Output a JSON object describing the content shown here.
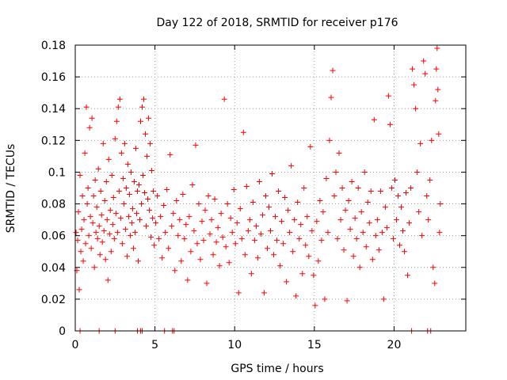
{
  "chart_data": {
    "type": "scatter",
    "title": "Day 122 of 2018, SRMTID for receiver p176",
    "xlabel": "GPS time / hours",
    "ylabel": "SRMTID / TECUs",
    "xlim": [
      0,
      24.5
    ],
    "ylim": [
      0,
      0.18
    ],
    "x_ticks": [
      0,
      5,
      10,
      15,
      20
    ],
    "x_tick_labels": [
      "0",
      "5",
      "10",
      "15",
      "20"
    ],
    "y_ticks": [
      0,
      0.02,
      0.04,
      0.06,
      0.08,
      0.1,
      0.12,
      0.14,
      0.16,
      0.18
    ],
    "y_tick_labels": [
      "0",
      "0.02",
      "0.04",
      "0.06",
      "0.08",
      "0.1",
      "0.12",
      "0.14",
      "0.16",
      "0.18"
    ],
    "grid": true,
    "marker": "+",
    "series_color": "#ff0000",
    "zero_points_x": [
      0.3,
      1.5,
      2.5,
      3.9,
      4.1,
      4.2,
      5.6,
      6.1,
      6.2,
      21.1,
      22.1,
      22.3
    ],
    "series": [
      {
        "name": "SRMTID",
        "points": [
          [
            0.05,
            0.062
          ],
          [
            0.1,
            0.038
          ],
          [
            0.15,
            0.057
          ],
          [
            0.2,
            0.075
          ],
          [
            0.25,
            0.026
          ],
          [
            0.3,
            0.098
          ],
          [
            0.35,
            0.05
          ],
          [
            0.4,
            0.064
          ],
          [
            0.45,
            0.085
          ],
          [
            0.5,
            0.044
          ],
          [
            0.55,
            0.07
          ],
          [
            0.6,
            0.112
          ],
          [
            0.65,
            0.055
          ],
          [
            0.7,
            0.141
          ],
          [
            0.75,
            0.08
          ],
          [
            0.8,
            0.09
          ],
          [
            0.85,
            0.06
          ],
          [
            0.9,
            0.128
          ],
          [
            0.95,
            0.072
          ],
          [
            1.0,
            0.052
          ],
          [
            1.05,
            0.134
          ],
          [
            1.1,
            0.068
          ],
          [
            1.15,
            0.085
          ],
          [
            1.2,
            0.04
          ],
          [
            1.25,
            0.095
          ],
          [
            1.3,
            0.062
          ],
          [
            1.35,
            0.078
          ],
          [
            1.4,
            0.058
          ],
          [
            1.45,
            0.102
          ],
          [
            1.5,
            0.066
          ],
          [
            1.55,
            0.048
          ],
          [
            1.6,
            0.088
          ],
          [
            1.65,
            0.073
          ],
          [
            1.7,
            0.056
          ],
          [
            1.75,
            0.118
          ],
          [
            1.8,
            0.063
          ],
          [
            1.85,
            0.082
          ],
          [
            1.9,
            0.045
          ],
          [
            1.95,
            0.094
          ],
          [
            2.0,
            0.07
          ],
          [
            2.05,
            0.032
          ],
          [
            2.1,
            0.108
          ],
          [
            2.15,
            0.061
          ],
          [
            2.2,
            0.076
          ],
          [
            2.25,
            0.05
          ],
          [
            2.3,
            0.098
          ],
          [
            2.35,
            0.067
          ],
          [
            2.4,
            0.084
          ],
          [
            2.45,
            0.058
          ],
          [
            2.5,
            0.121
          ],
          [
            2.55,
            0.074
          ],
          [
            2.6,
            0.132
          ],
          [
            2.65,
            0.062
          ],
          [
            2.7,
            0.141
          ],
          [
            2.75,
            0.088
          ],
          [
            2.8,
            0.146
          ],
          [
            2.85,
            0.071
          ],
          [
            2.9,
            0.112
          ],
          [
            2.95,
            0.055
          ],
          [
            3.0,
            0.096
          ],
          [
            3.05,
            0.08
          ],
          [
            3.1,
            0.118
          ],
          [
            3.15,
            0.064
          ],
          [
            3.2,
            0.09
          ],
          [
            3.25,
            0.047
          ],
          [
            3.3,
            0.105
          ],
          [
            3.35,
            0.072
          ],
          [
            3.4,
            0.086
          ],
          [
            3.45,
            0.06
          ],
          [
            3.5,
            0.1
          ],
          [
            3.55,
            0.068
          ],
          [
            3.6,
            0.077
          ],
          [
            3.65,
            0.052
          ],
          [
            3.7,
            0.094
          ],
          [
            3.75,
            0.062
          ],
          [
            3.8,
            0.115
          ],
          [
            3.85,
            0.074
          ],
          [
            3.9,
            0.088
          ],
          [
            3.95,
            0.044
          ],
          [
            4.0,
            0.092
          ],
          [
            4.05,
            0.07
          ],
          [
            4.1,
            0.132
          ],
          [
            4.15,
            0.08
          ],
          [
            4.2,
            0.141
          ],
          [
            4.25,
            0.098
          ],
          [
            4.3,
            0.146
          ],
          [
            4.35,
            0.087
          ],
          [
            4.4,
            0.124
          ],
          [
            4.45,
            0.066
          ],
          [
            4.5,
            0.11
          ],
          [
            4.55,
            0.083
          ],
          [
            4.6,
            0.134
          ],
          [
            4.65,
            0.076
          ],
          [
            4.7,
            0.118
          ],
          [
            4.75,
            0.059
          ],
          [
            4.8,
            0.101
          ],
          [
            4.85,
            0.071
          ],
          [
            4.9,
            0.088
          ],
          [
            4.95,
            0.054
          ],
          [
            5.05,
            0.068
          ],
          [
            5.15,
            0.085
          ],
          [
            5.25,
            0.058
          ],
          [
            5.35,
            0.072
          ],
          [
            5.45,
            0.046
          ],
          [
            5.55,
            0.079
          ],
          [
            5.65,
            0.062
          ],
          [
            5.75,
            0.089
          ],
          [
            5.85,
            0.052
          ],
          [
            5.95,
            0.111
          ],
          [
            6.05,
            0.066
          ],
          [
            6.15,
            0.074
          ],
          [
            6.25,
            0.038
          ],
          [
            6.35,
            0.082
          ],
          [
            6.45,
            0.06
          ],
          [
            6.55,
            0.07
          ],
          [
            6.65,
            0.044
          ],
          [
            6.75,
            0.086
          ],
          [
            6.85,
            0.058
          ],
          [
            6.95,
            0.067
          ],
          [
            7.05,
            0.032
          ],
          [
            7.15,
            0.072
          ],
          [
            7.25,
            0.05
          ],
          [
            7.35,
            0.092
          ],
          [
            7.45,
            0.063
          ],
          [
            7.55,
            0.117
          ],
          [
            7.65,
            0.055
          ],
          [
            7.75,
            0.08
          ],
          [
            7.85,
            0.045
          ],
          [
            7.95,
            0.069
          ],
          [
            8.05,
            0.057
          ],
          [
            8.15,
            0.076
          ],
          [
            8.25,
            0.03
          ],
          [
            8.35,
            0.085
          ],
          [
            8.45,
            0.061
          ],
          [
            8.55,
            0.07
          ],
          [
            8.65,
            0.048
          ],
          [
            8.75,
            0.083
          ],
          [
            8.85,
            0.056
          ],
          [
            8.95,
            0.065
          ],
          [
            9.05,
            0.041
          ],
          [
            9.15,
            0.074
          ],
          [
            9.25,
            0.059
          ],
          [
            9.35,
            0.146
          ],
          [
            9.45,
            0.053
          ],
          [
            9.55,
            0.08
          ],
          [
            9.65,
            0.043
          ],
          [
            9.75,
            0.071
          ],
          [
            9.85,
            0.062
          ],
          [
            9.95,
            0.089
          ],
          [
            10.05,
            0.055
          ],
          [
            10.15,
            0.068
          ],
          [
            10.25,
            0.024
          ],
          [
            10.35,
            0.077
          ],
          [
            10.45,
            0.058
          ],
          [
            10.55,
            0.125
          ],
          [
            10.65,
            0.048
          ],
          [
            10.75,
            0.091
          ],
          [
            10.85,
            0.063
          ],
          [
            10.95,
            0.07
          ],
          [
            11.05,
            0.036
          ],
          [
            11.15,
            0.081
          ],
          [
            11.25,
            0.057
          ],
          [
            11.35,
            0.066
          ],
          [
            11.45,
            0.046
          ],
          [
            11.55,
            0.094
          ],
          [
            11.65,
            0.061
          ],
          [
            11.75,
            0.073
          ],
          [
            11.85,
            0.024
          ],
          [
            11.95,
            0.085
          ],
          [
            12.05,
            0.052
          ],
          [
            12.15,
            0.078
          ],
          [
            12.25,
            0.063
          ],
          [
            12.35,
            0.099
          ],
          [
            12.45,
            0.048
          ],
          [
            12.55,
            0.072
          ],
          [
            12.65,
            0.057
          ],
          [
            12.75,
            0.088
          ],
          [
            12.85,
            0.041
          ],
          [
            12.95,
            0.069
          ],
          [
            13.05,
            0.055
          ],
          [
            13.15,
            0.084
          ],
          [
            13.25,
            0.031
          ],
          [
            13.35,
            0.076
          ],
          [
            13.45,
            0.062
          ],
          [
            13.55,
            0.104
          ],
          [
            13.65,
            0.05
          ],
          [
            13.75,
            0.07
          ],
          [
            13.85,
            0.022
          ],
          [
            13.95,
            0.081
          ],
          [
            14.05,
            0.058
          ],
          [
            14.15,
            0.067
          ],
          [
            14.25,
            0.036
          ],
          [
            14.35,
            0.09
          ],
          [
            14.45,
            0.054
          ],
          [
            14.55,
            0.072
          ],
          [
            14.65,
            0.047
          ],
          [
            14.75,
            0.116
          ],
          [
            14.85,
            0.063
          ],
          [
            14.95,
            0.035
          ],
          [
            15.05,
            0.016
          ],
          [
            15.15,
            0.069
          ],
          [
            15.25,
            0.044
          ],
          [
            15.35,
            0.082
          ],
          [
            15.45,
            0.057
          ],
          [
            15.55,
            0.075
          ],
          [
            15.65,
            0.02
          ],
          [
            15.75,
            0.096
          ],
          [
            15.85,
            0.062
          ],
          [
            15.95,
            0.12
          ],
          [
            16.05,
            0.147
          ],
          [
            16.15,
            0.164
          ],
          [
            16.25,
            0.085
          ],
          [
            16.35,
            0.1
          ],
          [
            16.45,
            0.058
          ],
          [
            16.55,
            0.112
          ],
          [
            16.65,
            0.07
          ],
          [
            16.75,
            0.09
          ],
          [
            16.85,
            0.051
          ],
          [
            16.95,
            0.076
          ],
          [
            17.05,
            0.019
          ],
          [
            17.15,
            0.082
          ],
          [
            17.25,
            0.064
          ],
          [
            17.35,
            0.094
          ],
          [
            17.45,
            0.047
          ],
          [
            17.55,
            0.071
          ],
          [
            17.65,
            0.058
          ],
          [
            17.75,
            0.09
          ],
          [
            17.85,
            0.04
          ],
          [
            17.95,
            0.075
          ],
          [
            18.05,
            0.062
          ],
          [
            18.15,
            0.1
          ],
          [
            18.25,
            0.053
          ],
          [
            18.35,
            0.081
          ],
          [
            18.45,
            0.068
          ],
          [
            18.55,
            0.088
          ],
          [
            18.65,
            0.045
          ],
          [
            18.75,
            0.133
          ],
          [
            18.85,
            0.06
          ],
          [
            18.95,
            0.07
          ],
          [
            19.05,
            0.051
          ],
          [
            19.15,
            0.088
          ],
          [
            19.25,
            0.062
          ],
          [
            19.35,
            0.02
          ],
          [
            19.45,
            0.078
          ],
          [
            19.55,
            0.065
          ],
          [
            19.65,
            0.148
          ],
          [
            19.75,
            0.13
          ],
          [
            19.85,
            0.09
          ],
          [
            19.95,
            0.058
          ],
          [
            20.05,
            0.095
          ],
          [
            20.15,
            0.07
          ],
          [
            20.25,
            0.085
          ],
          [
            20.35,
            0.054
          ],
          [
            20.45,
            0.078
          ],
          [
            20.55,
            0.063
          ],
          [
            20.65,
            0.05
          ],
          [
            20.75,
            0.087
          ],
          [
            20.85,
            0.035
          ],
          [
            20.95,
            0.068
          ],
          [
            21.05,
            0.09
          ],
          [
            21.15,
            0.165
          ],
          [
            21.25,
            0.155
          ],
          [
            21.35,
            0.14
          ],
          [
            21.45,
            0.1
          ],
          [
            21.55,
            0.075
          ],
          [
            21.65,
            0.118
          ],
          [
            21.75,
            0.06
          ],
          [
            21.85,
            0.17
          ],
          [
            21.95,
            0.162
          ],
          [
            22.05,
            0.085
          ],
          [
            22.15,
            0.07
          ],
          [
            22.25,
            0.095
          ],
          [
            22.35,
            0.12
          ],
          [
            22.45,
            0.04
          ],
          [
            22.55,
            0.03
          ],
          [
            22.6,
            0.145
          ],
          [
            22.65,
            0.165
          ],
          [
            22.7,
            0.178
          ],
          [
            22.75,
            0.152
          ],
          [
            22.8,
            0.124
          ],
          [
            22.85,
            0.062
          ],
          [
            22.9,
            0.08
          ]
        ]
      }
    ]
  }
}
